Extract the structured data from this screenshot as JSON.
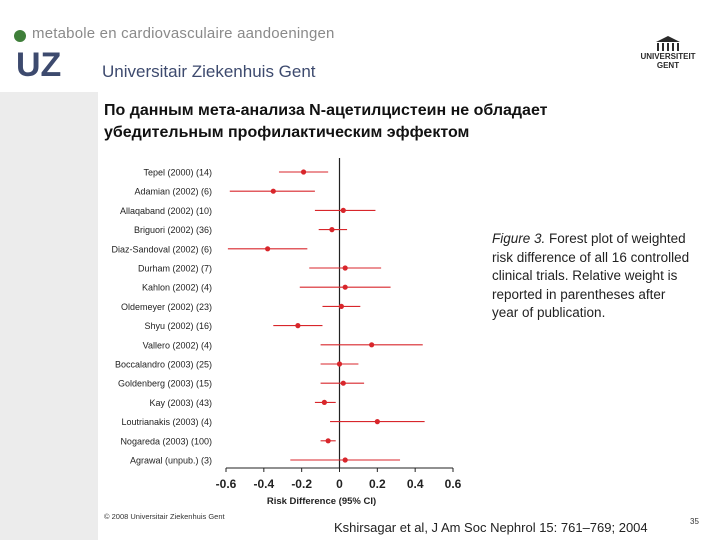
{
  "header": {
    "department": "metabole en cardiovasculaire aandoeningen",
    "logo_text": "UZ",
    "hospital_name": "Universitair Ziekenhuis Gent",
    "university_logo_line1": "UNIVERSITEIT",
    "university_logo_line2": "GENT"
  },
  "slide": {
    "title_line1": "По данным мета-анализа N-ацетилцистеин не обладает",
    "title_line2": "убедительным профилактическим эффектом"
  },
  "caption": {
    "fig_label": "Figure 3.",
    "text": " Forest plot of weighted risk difference of all 16 controlled clinical trials. Relative weight is reported in parentheses after year of publication."
  },
  "footer": {
    "copyright": "© 2008 Universitair Ziekenhuis Gent",
    "citation": "Kshirsagar et al, J Am Soc Nephrol 15: 761–769; 2004",
    "page_number": "35"
  },
  "colors": {
    "accent_red": "#d8262b",
    "dept_green": "#3f7f3a",
    "brand_blue": "#3d4a6e",
    "gray_band": "#ececec"
  },
  "chart_data": {
    "type": "forest",
    "xlabel": "Risk Difference (95% CI)",
    "xlim": [
      -0.6,
      0.6
    ],
    "xticks": [
      -0.6,
      -0.4,
      -0.2,
      0,
      0.2,
      0.4,
      0.6
    ],
    "tick_labels": [
      "-0.6",
      "-0.4",
      "-0.2",
      "0",
      "0.2",
      "0.4",
      "0.6"
    ],
    "reference_line": 0,
    "studies": [
      {
        "label": "Tepel (2000) (14)",
        "estimate": -0.19,
        "lower": -0.32,
        "upper": -0.06
      },
      {
        "label": "Adamian (2002) (6)",
        "estimate": -0.35,
        "lower": -0.58,
        "upper": -0.13
      },
      {
        "label": "Allaqaband (2002) (10)",
        "estimate": 0.02,
        "lower": -0.13,
        "upper": 0.19
      },
      {
        "label": "Briguori (2002) (36)",
        "estimate": -0.04,
        "lower": -0.11,
        "upper": 0.04
      },
      {
        "label": "Diaz-Sandoval (2002) (6)",
        "estimate": -0.38,
        "lower": -0.59,
        "upper": -0.17
      },
      {
        "label": "Durham (2002) (7)",
        "estimate": 0.03,
        "lower": -0.16,
        "upper": 0.22
      },
      {
        "label": "Kahlon (2002) (4)",
        "estimate": 0.03,
        "lower": -0.21,
        "upper": 0.27
      },
      {
        "label": "Oldemeyer (2002) (23)",
        "estimate": 0.01,
        "lower": -0.09,
        "upper": 0.11
      },
      {
        "label": "Shyu (2002) (16)",
        "estimate": -0.22,
        "lower": -0.35,
        "upper": -0.09
      },
      {
        "label": "Vallero (2002) (4)",
        "estimate": 0.17,
        "lower": -0.1,
        "upper": 0.44
      },
      {
        "label": "Boccalandro (2003) (25)",
        "estimate": 0.0,
        "lower": -0.1,
        "upper": 0.1
      },
      {
        "label": "Goldenberg (2003) (15)",
        "estimate": 0.02,
        "lower": -0.1,
        "upper": 0.13
      },
      {
        "label": "Kay (2003) (43)",
        "estimate": -0.08,
        "lower": -0.13,
        "upper": -0.02
      },
      {
        "label": "Loutrianakis (2003) (4)",
        "estimate": 0.2,
        "lower": -0.05,
        "upper": 0.45
      },
      {
        "label": "Nogareda (2003) (100)",
        "estimate": -0.06,
        "lower": -0.1,
        "upper": -0.02
      },
      {
        "label": "Agrawal (unpub.) (3)",
        "estimate": 0.03,
        "lower": -0.26,
        "upper": 0.32
      }
    ]
  }
}
